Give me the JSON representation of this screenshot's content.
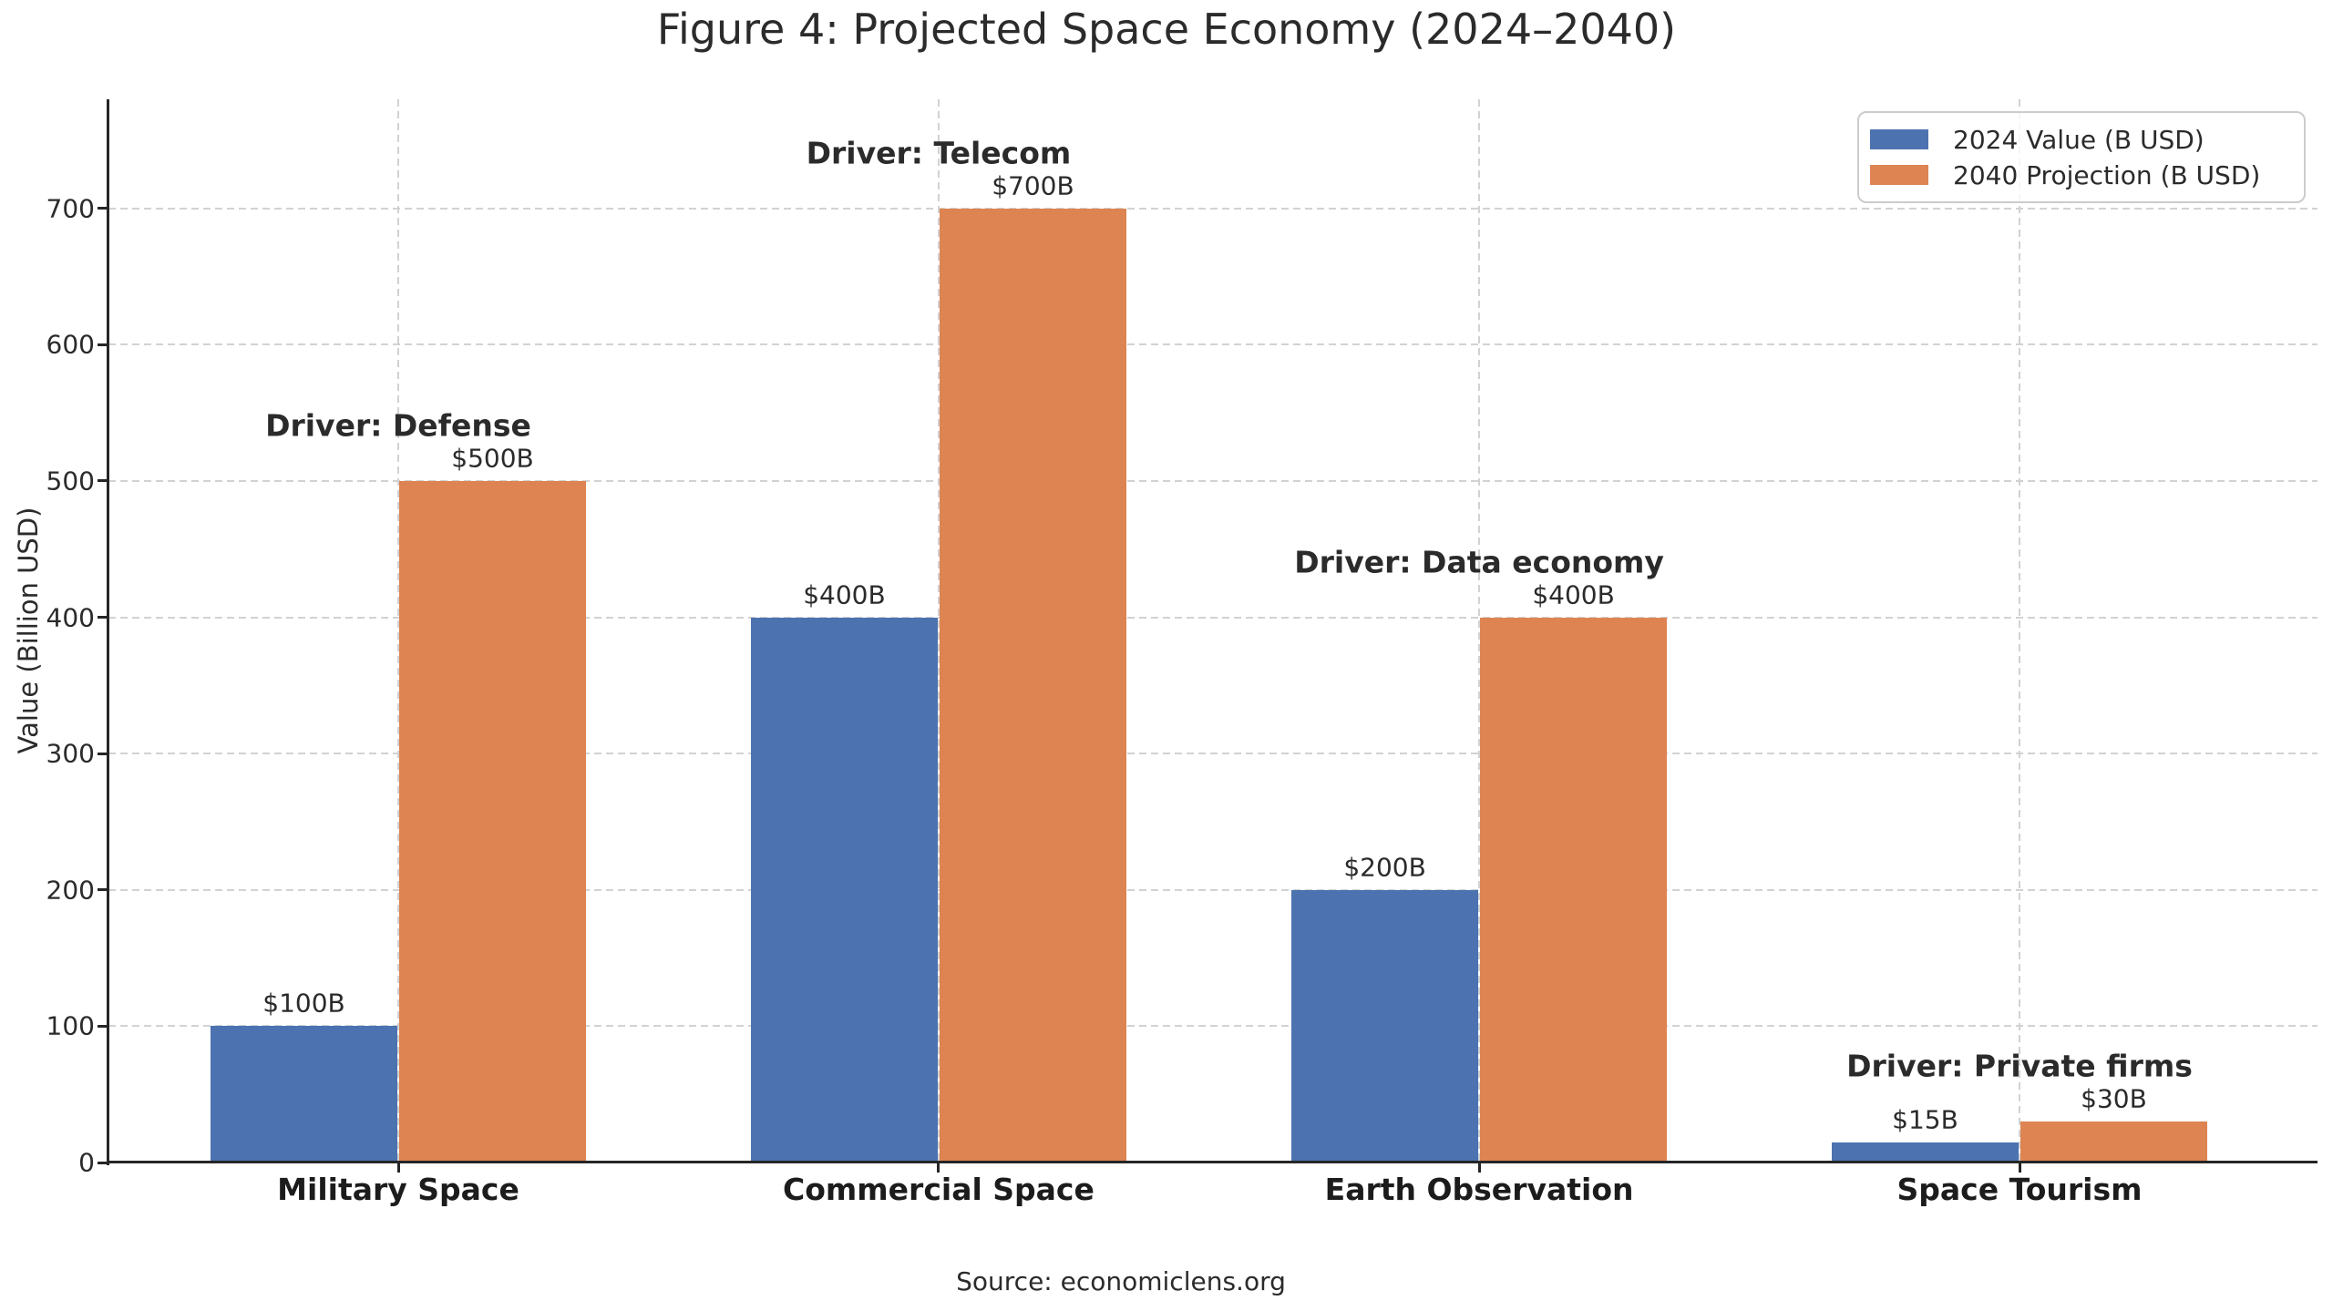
{
  "title": "Figure 4: Projected Space Economy (2024–2040)",
  "source": "Source: economiclens.org",
  "legend": {
    "items": [
      {
        "label": "2024 Value (B USD)",
        "color": "#4C72B0"
      },
      {
        "label": "2040 Projection (B USD)",
        "color": "#DD8452"
      }
    ]
  },
  "chart_data": {
    "type": "bar",
    "title": "Figure 4: Projected Space Economy (2024–2040)",
    "categories": [
      "Military Space",
      "Commercial Space",
      "Earth Observation",
      "Space Tourism"
    ],
    "series": [
      {
        "name": "2024 Value (B USD)",
        "color": "#4C72B0",
        "values": [
          100,
          400,
          200,
          15
        ]
      },
      {
        "name": "2040 Projection (B USD)",
        "color": "#DD8452",
        "values": [
          500,
          700,
          400,
          30
        ]
      }
    ],
    "bar_value_labels": [
      [
        "$100B",
        "$400B",
        "$200B",
        "$15B"
      ],
      [
        "$500B",
        "$700B",
        "$400B",
        "$30B"
      ]
    ],
    "annotations": [
      "Driver: Defense",
      "Driver: Telecom",
      "Driver: Data economy",
      "Driver: Private firms"
    ],
    "xlabel": "",
    "ylabel": "Value (Billion USD)",
    "yticks": [
      0,
      100,
      200,
      300,
      400,
      500,
      600,
      700
    ],
    "ylim": [
      0,
      780
    ],
    "grid": true,
    "grid_style": "dashed",
    "legend_position": "upper right",
    "background": "#ffffff"
  }
}
